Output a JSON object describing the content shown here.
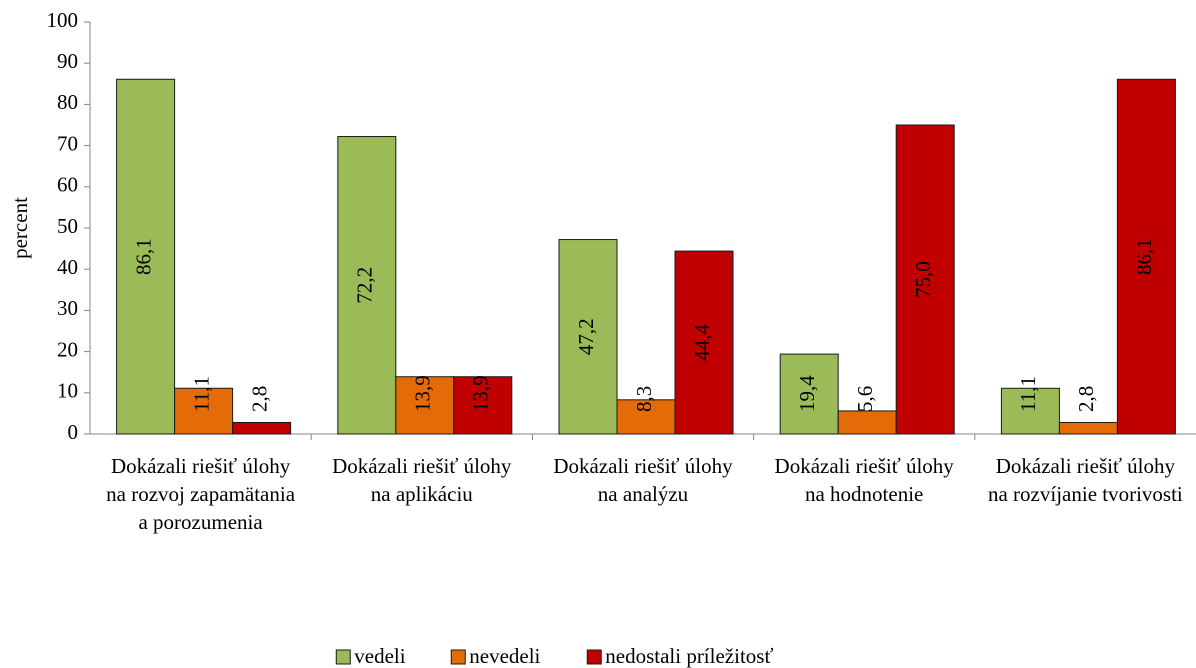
{
  "chart_data": {
    "type": "bar",
    "categories": [
      "Dokázali riešiť úlohy na rozvoj zapamätania a porozumenia",
      "Dokázali riešiť úlohy na aplikáciu",
      "Dokázali riešiť úlohy na analýzu",
      "Dokázali riešiť úlohy na hodnotenie",
      "Dokázali riešiť úlohy na rozvíjanie tvorivosti"
    ],
    "series": [
      {
        "name": "vedeli",
        "color": "#9bbb59",
        "values": [
          86.1,
          72.2,
          47.2,
          19.4,
          11.1
        ],
        "value_labels": [
          "86,1",
          "72,2",
          "47,2",
          "19,4",
          "11,1"
        ]
      },
      {
        "name": "nevedeli",
        "color": "#e36c09",
        "values": [
          11.1,
          13.9,
          8.3,
          5.6,
          2.8
        ],
        "value_labels": [
          "11,1",
          "13,9",
          "8,3",
          "5,6",
          "2,8"
        ]
      },
      {
        "name": "nedostali príležitosť",
        "color": "#c00000",
        "values": [
          2.8,
          13.9,
          44.4,
          75.0,
          86.1
        ],
        "value_labels": [
          "2,8",
          "13,9",
          "44,4",
          "75,0",
          "86,1"
        ]
      }
    ],
    "ylabel": "percent",
    "ylim": [
      0,
      100
    ],
    "yticks": [
      0,
      10,
      20,
      30,
      40,
      50,
      60,
      70,
      80,
      90,
      100
    ],
    "legend": "bottom"
  }
}
